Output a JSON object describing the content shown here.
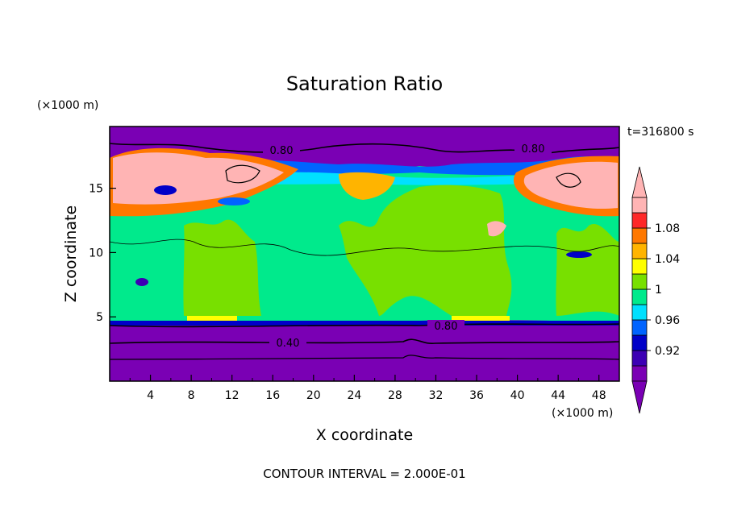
{
  "chart_data": {
    "type": "heatmap",
    "title": "Saturation Ratio",
    "xlabel": "X coordinate",
    "ylabel": "Z coordinate",
    "x_unit": "(×1000 m)",
    "y_unit": "(×1000 m)",
    "time_label": "t=316800 s",
    "footer": "CONTOUR INTERVAL = 2.000E-01",
    "xlim": [
      0,
      50
    ],
    "ylim": [
      0,
      19.8
    ],
    "x_ticks": [
      "4",
      "8",
      "12",
      "16",
      "20",
      "24",
      "28",
      "32",
      "36",
      "40",
      "44",
      "48"
    ],
    "y_ticks": [
      "5",
      "10",
      "15"
    ],
    "contour_labels": [
      "0.80",
      "0.80",
      "0.80",
      "0.40"
    ],
    "colorbar": {
      "labels": [
        "0.92",
        "0.96",
        "1",
        "1.04",
        "1.08"
      ],
      "colors": [
        "#7a00b4",
        "#3c00b4",
        "#0000c8",
        "#0064ff",
        "#00e0ff",
        "#00ea8c",
        "#78e000",
        "#ffff00",
        "#ffb400",
        "#ff7800",
        "#ff2828",
        "#ffb4b4"
      ],
      "overflow_low": "#7a00b4",
      "overflow_high": "#ffb4b4"
    }
  }
}
